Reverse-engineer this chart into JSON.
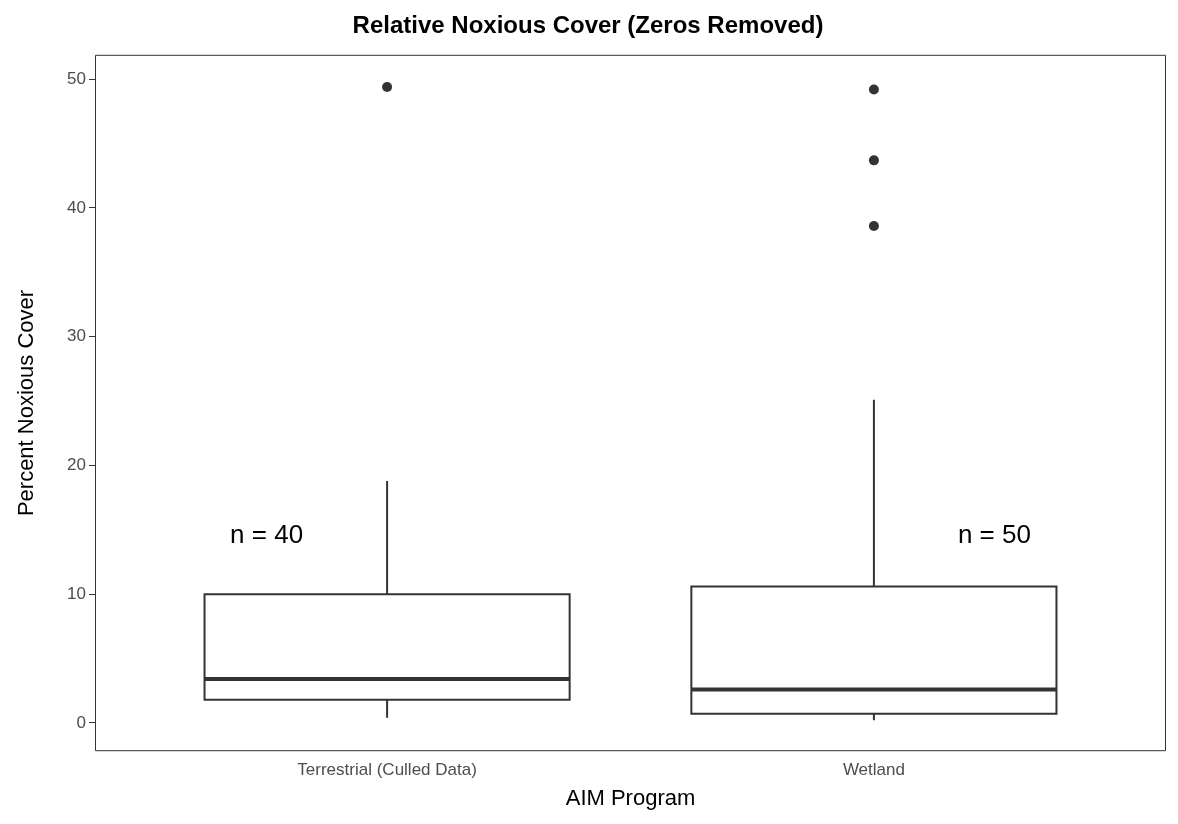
{
  "chart_data": {
    "type": "box",
    "title": "Relative Noxious Cover (Zeros Removed)",
    "xlabel": "AIM Program",
    "ylabel": "Percent Noxious Cover",
    "categories": [
      "Terrestrial (Culled Data)",
      "Wetland"
    ],
    "boxes": [
      {
        "low": 0.4,
        "q1": 1.8,
        "median": 3.4,
        "q3": 10.0,
        "high": 18.8,
        "outliers": [
          49.4
        ]
      },
      {
        "low": 0.2,
        "q1": 0.7,
        "median": 2.6,
        "q3": 10.6,
        "high": 25.1,
        "outliers": [
          38.6,
          43.7,
          49.2
        ]
      }
    ],
    "annotations": [
      "n = 40",
      "n = 50"
    ],
    "ylim": [
      -2.2,
      51.9
    ],
    "yticks": [
      0,
      10,
      20,
      30,
      40,
      50
    ],
    "grid": false,
    "legend": false
  }
}
